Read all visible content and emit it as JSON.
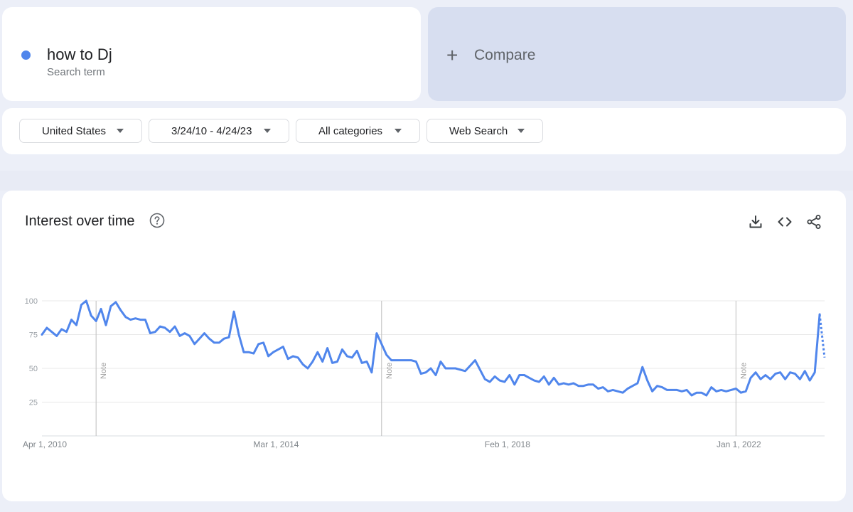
{
  "search_term": {
    "name": "how to Dj",
    "type": "Search term",
    "color": "#5086ec"
  },
  "compare": {
    "label": "Compare",
    "icon": "plus-icon"
  },
  "filters": {
    "region": "United States",
    "date_range": "3/24/10 - 4/24/23",
    "category": "All categories",
    "property": "Web Search"
  },
  "panel": {
    "title": "Interest over time",
    "icons": [
      "help-icon",
      "download-icon",
      "embed-icon",
      "share-icon"
    ]
  },
  "chart_data": {
    "type": "line",
    "title": "",
    "xlabel": "",
    "ylabel": "",
    "ylim": [
      0,
      100
    ],
    "yticks": [
      25,
      50,
      75,
      100
    ],
    "x_tick_labels": [
      "Apr 1, 2010",
      "Mar 1, 2014",
      "Feb 1, 2018",
      "Jan 1, 2022"
    ],
    "x_start": "2010-04",
    "annotations": [
      {
        "label": "Note",
        "x": "2011-03"
      },
      {
        "label": "Note",
        "x": "2016-01"
      },
      {
        "label": "Note",
        "x": "2022-01"
      }
    ],
    "series": [
      {
        "color": "#5086ec",
        "partial_last_point": true,
        "values": [
          75,
          80,
          77,
          74,
          79,
          77,
          86,
          82,
          97,
          100,
          89,
          85,
          94,
          82,
          96,
          99,
          93,
          88,
          86,
          87,
          86,
          86,
          76,
          77,
          81,
          80,
          77,
          81,
          74,
          76,
          74,
          68,
          72,
          76,
          72,
          69,
          69,
          72,
          73,
          92,
          75,
          62,
          62,
          61,
          68,
          69,
          59,
          62,
          64,
          66,
          57,
          59,
          58,
          53,
          50,
          55,
          62,
          55,
          65,
          54,
          55,
          64,
          59,
          58,
          63,
          54,
          55,
          47,
          76,
          68,
          60,
          56,
          56,
          56,
          56,
          56,
          55,
          46,
          47,
          50,
          45,
          55,
          50,
          50,
          50,
          49,
          48,
          52,
          56,
          49,
          42,
          40,
          44,
          41,
          40,
          45,
          38,
          45,
          45,
          43,
          41,
          40,
          44,
          38,
          43,
          38,
          39,
          38,
          39,
          37,
          37,
          38,
          38,
          35,
          36,
          33,
          34,
          33,
          32,
          35,
          37,
          39,
          51,
          41,
          33,
          37,
          36,
          34,
          34,
          34,
          33,
          34,
          30,
          32,
          32,
          30,
          36,
          33,
          34,
          33,
          34,
          35,
          32,
          33,
          43,
          47,
          42,
          45,
          42,
          46,
          47,
          42,
          47,
          46,
          42,
          48,
          41,
          47,
          90,
          58
        ]
      }
    ]
  }
}
